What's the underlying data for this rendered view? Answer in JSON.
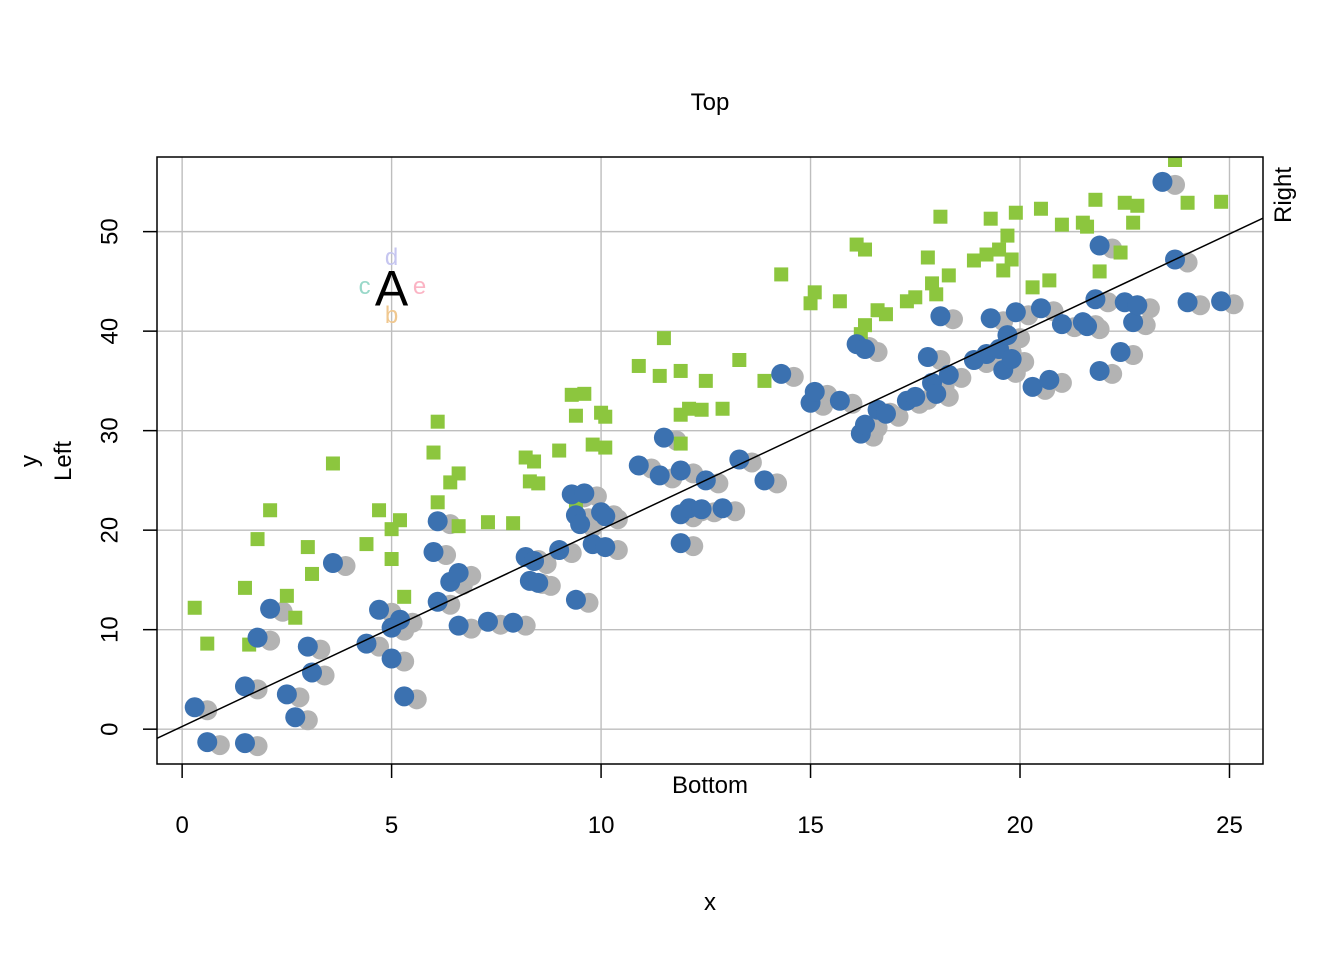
{
  "chart_data": {
    "type": "scatter",
    "xlabel": "x",
    "ylabel": "y",
    "xlim": [
      -0.6,
      25.8
    ],
    "ylim": [
      -3.5,
      57.5
    ],
    "grid": true,
    "x_ticks": [
      0,
      5,
      10,
      15,
      20,
      25
    ],
    "y_ticks": [
      0,
      10,
      20,
      30,
      40,
      50
    ],
    "x_tick_labels": [
      "0",
      "5",
      "10",
      "15",
      "20",
      "25"
    ],
    "y_tick_labels": [
      "0",
      "10",
      "20",
      "30",
      "40",
      "50"
    ],
    "margin_text": {
      "top": "Top",
      "bottom": "Bottom",
      "left": "Left",
      "right": "Right"
    },
    "annotation": {
      "center": "A",
      "left": "c",
      "right": "e",
      "above": "d",
      "below": "b",
      "at": [
        5,
        44.5
      ],
      "colors": {
        "center": "#000000",
        "left": "#99d8c9",
        "right": "#fbb4c4",
        "above": "#c6c6f0",
        "below": "#f0c890"
      }
    },
    "regression_line": {
      "intercept": 0.27,
      "slope": 1.98,
      "color": "#000000"
    },
    "colors": {
      "blue": "#3b71b0",
      "gray": "#b3b3b3",
      "green": "#8cc63e"
    },
    "series": [
      {
        "marker": "circle",
        "color": "#3b71b0",
        "shadow_color": "#b3b3b3",
        "shadow_offset": [
          0.3,
          -0.3
        ],
        "points": [
          [
            0.3,
            2.2
          ],
          [
            0.6,
            -1.3
          ],
          [
            1.5,
            -1.4
          ],
          [
            1.5,
            4.3
          ],
          [
            1.8,
            9.2
          ],
          [
            2.1,
            12.1
          ],
          [
            2.5,
            3.5
          ],
          [
            2.7,
            1.2
          ],
          [
            3.0,
            8.3
          ],
          [
            3.1,
            5.7
          ],
          [
            3.6,
            16.7
          ],
          [
            4.4,
            8.6
          ],
          [
            4.7,
            12.0
          ],
          [
            5.0,
            7.1
          ],
          [
            5.0,
            10.2
          ],
          [
            5.2,
            11.0
          ],
          [
            5.3,
            3.3
          ],
          [
            6.0,
            17.8
          ],
          [
            6.1,
            12.8
          ],
          [
            6.1,
            20.9
          ],
          [
            6.4,
            14.8
          ],
          [
            6.6,
            15.7
          ],
          [
            6.6,
            10.4
          ],
          [
            7.3,
            10.8
          ],
          [
            7.9,
            10.7
          ],
          [
            8.2,
            17.3
          ],
          [
            8.3,
            14.9
          ],
          [
            8.4,
            16.9
          ],
          [
            8.5,
            14.7
          ],
          [
            9.0,
            18.0
          ],
          [
            9.3,
            23.6
          ],
          [
            9.4,
            21.5
          ],
          [
            9.4,
            13.0
          ],
          [
            9.5,
            20.6
          ],
          [
            9.6,
            23.7
          ],
          [
            9.8,
            18.6
          ],
          [
            10.0,
            21.8
          ],
          [
            10.1,
            21.4
          ],
          [
            10.1,
            18.3
          ],
          [
            10.9,
            26.5
          ],
          [
            11.4,
            25.5
          ],
          [
            11.5,
            29.3
          ],
          [
            11.9,
            26.0
          ],
          [
            11.9,
            21.6
          ],
          [
            11.9,
            18.7
          ],
          [
            12.1,
            22.2
          ],
          [
            12.4,
            22.1
          ],
          [
            12.5,
            25.0
          ],
          [
            12.9,
            22.2
          ],
          [
            13.3,
            27.1
          ],
          [
            13.9,
            25.0
          ],
          [
            14.3,
            35.7
          ],
          [
            15.0,
            32.8
          ],
          [
            15.1,
            33.9
          ],
          [
            15.7,
            33.0
          ],
          [
            16.1,
            38.7
          ],
          [
            16.2,
            29.7
          ],
          [
            16.3,
            30.6
          ],
          [
            16.3,
            38.2
          ],
          [
            16.6,
            32.1
          ],
          [
            16.8,
            31.7
          ],
          [
            17.3,
            33.0
          ],
          [
            17.5,
            33.4
          ],
          [
            17.8,
            37.4
          ],
          [
            17.9,
            34.8
          ],
          [
            18.0,
            33.7
          ],
          [
            18.1,
            41.5
          ],
          [
            18.3,
            35.6
          ],
          [
            18.9,
            37.1
          ],
          [
            19.2,
            37.7
          ],
          [
            19.3,
            41.3
          ],
          [
            19.5,
            38.2
          ],
          [
            19.6,
            36.1
          ],
          [
            19.7,
            39.6
          ],
          [
            19.8,
            37.2
          ],
          [
            19.9,
            41.9
          ],
          [
            20.3,
            34.4
          ],
          [
            20.5,
            42.3
          ],
          [
            20.7,
            35.1
          ],
          [
            21.0,
            40.7
          ],
          [
            21.5,
            40.9
          ],
          [
            21.6,
            40.5
          ],
          [
            21.8,
            43.2
          ],
          [
            21.9,
            36.0
          ],
          [
            21.9,
            48.6
          ],
          [
            22.4,
            37.9
          ],
          [
            22.5,
            42.9
          ],
          [
            22.7,
            40.9
          ],
          [
            22.8,
            42.6
          ],
          [
            23.4,
            55.0
          ],
          [
            23.7,
            47.2
          ],
          [
            24.0,
            42.9
          ],
          [
            24.8,
            43.0
          ]
        ]
      },
      {
        "marker": "square",
        "color": "#8cc63e",
        "points": [
          [
            0.3,
            12.2
          ],
          [
            0.6,
            8.6
          ],
          [
            1.5,
            14.2
          ],
          [
            1.6,
            8.5
          ],
          [
            1.8,
            19.1
          ],
          [
            2.1,
            22.0
          ],
          [
            2.5,
            13.4
          ],
          [
            2.7,
            11.2
          ],
          [
            3.0,
            18.3
          ],
          [
            3.1,
            15.6
          ],
          [
            3.6,
            26.7
          ],
          [
            4.4,
            18.6
          ],
          [
            4.7,
            22.0
          ],
          [
            5.0,
            20.1
          ],
          [
            5.0,
            17.1
          ],
          [
            5.2,
            21.0
          ],
          [
            5.3,
            13.3
          ],
          [
            6.0,
            27.8
          ],
          [
            6.1,
            22.8
          ],
          [
            6.1,
            30.9
          ],
          [
            6.4,
            24.8
          ],
          [
            6.6,
            25.7
          ],
          [
            6.6,
            20.4
          ],
          [
            7.3,
            20.8
          ],
          [
            7.9,
            20.7
          ],
          [
            8.2,
            27.3
          ],
          [
            8.3,
            24.9
          ],
          [
            8.4,
            26.9
          ],
          [
            8.5,
            24.7
          ],
          [
            9.0,
            28.0
          ],
          [
            9.3,
            33.6
          ],
          [
            9.4,
            31.5
          ],
          [
            9.4,
            22.9
          ],
          [
            9.6,
            33.7
          ],
          [
            9.8,
            28.6
          ],
          [
            10.0,
            31.8
          ],
          [
            10.1,
            31.4
          ],
          [
            10.1,
            28.3
          ],
          [
            10.9,
            36.5
          ],
          [
            11.4,
            35.5
          ],
          [
            11.5,
            39.3
          ],
          [
            11.9,
            36.0
          ],
          [
            11.9,
            31.6
          ],
          [
            11.9,
            28.7
          ],
          [
            12.1,
            32.2
          ],
          [
            12.4,
            32.1
          ],
          [
            12.5,
            35.0
          ],
          [
            12.9,
            32.2
          ],
          [
            13.3,
            37.1
          ],
          [
            13.9,
            35.0
          ],
          [
            14.3,
            45.7
          ],
          [
            15.0,
            42.8
          ],
          [
            15.1,
            43.9
          ],
          [
            15.7,
            43.0
          ],
          [
            16.1,
            48.7
          ],
          [
            16.2,
            39.7
          ],
          [
            16.3,
            40.6
          ],
          [
            16.3,
            48.2
          ],
          [
            16.6,
            42.1
          ],
          [
            16.8,
            41.7
          ],
          [
            17.3,
            43.0
          ],
          [
            17.5,
            43.4
          ],
          [
            17.8,
            47.4
          ],
          [
            17.9,
            44.8
          ],
          [
            18.0,
            43.7
          ],
          [
            18.1,
            51.5
          ],
          [
            18.3,
            45.6
          ],
          [
            18.9,
            47.1
          ],
          [
            19.2,
            47.7
          ],
          [
            19.3,
            51.3
          ],
          [
            19.5,
            48.2
          ],
          [
            19.6,
            46.1
          ],
          [
            19.7,
            49.6
          ],
          [
            19.8,
            47.2
          ],
          [
            19.9,
            51.9
          ],
          [
            20.3,
            44.4
          ],
          [
            20.5,
            52.3
          ],
          [
            20.7,
            45.1
          ],
          [
            21.0,
            50.7
          ],
          [
            21.5,
            50.9
          ],
          [
            21.6,
            50.5
          ],
          [
            21.8,
            53.2
          ],
          [
            21.9,
            46.0
          ],
          [
            22.4,
            47.9
          ],
          [
            22.5,
            52.9
          ],
          [
            22.7,
            50.9
          ],
          [
            22.8,
            52.6
          ],
          [
            23.7,
            57.2
          ],
          [
            24.0,
            52.9
          ],
          [
            24.8,
            53.0
          ]
        ]
      }
    ]
  }
}
